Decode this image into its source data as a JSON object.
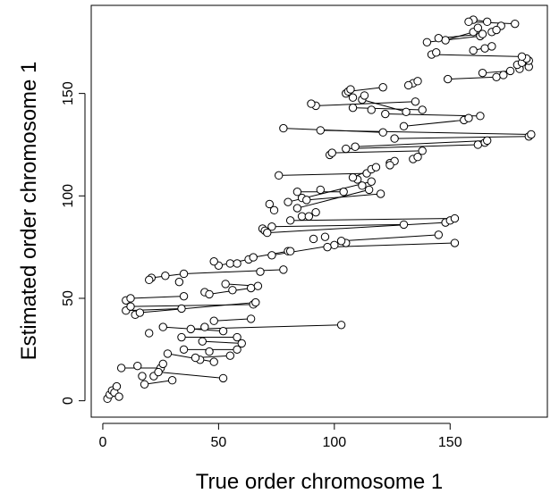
{
  "chart_data": {
    "type": "scatter",
    "xlabel": "True order chromosome 1",
    "ylabel": "Estimated order chromosome 1",
    "xlim": [
      -5,
      192
    ],
    "ylim": [
      -8,
      193
    ],
    "x_ticks": [
      0,
      50,
      100,
      150
    ],
    "y_ticks": [
      0,
      50,
      100,
      150
    ],
    "box": true,
    "grid": false,
    "marker": "open-circle",
    "colors": {
      "stroke": "#000000",
      "fill": "#ffffff"
    },
    "points": [
      {
        "x": 2,
        "y": 1
      },
      {
        "x": 3,
        "y": 3
      },
      {
        "x": 4,
        "y": 5
      },
      {
        "x": 5,
        "y": 4
      },
      {
        "x": 6,
        "y": 7
      },
      {
        "x": 7,
        "y": 2
      },
      {
        "x": 18,
        "y": 8
      },
      {
        "x": 22,
        "y": 12
      },
      {
        "x": 30,
        "y": 10
      },
      {
        "x": 17,
        "y": 12
      },
      {
        "x": 25,
        "y": 16
      },
      {
        "x": 8,
        "y": 16
      },
      {
        "x": 15,
        "y": 17
      },
      {
        "x": 24,
        "y": 14
      },
      {
        "x": 26,
        "y": 18
      },
      {
        "x": 52,
        "y": 11
      },
      {
        "x": 48,
        "y": 19
      },
      {
        "x": 42,
        "y": 20
      },
      {
        "x": 28,
        "y": 23
      },
      {
        "x": 35,
        "y": 25
      },
      {
        "x": 40,
        "y": 21
      },
      {
        "x": 46,
        "y": 24
      },
      {
        "x": 55,
        "y": 22
      },
      {
        "x": 58,
        "y": 25
      },
      {
        "x": 60,
        "y": 28
      },
      {
        "x": 43,
        "y": 29
      },
      {
        "x": 34,
        "y": 31
      },
      {
        "x": 58,
        "y": 31
      },
      {
        "x": 38,
        "y": 35
      },
      {
        "x": 44,
        "y": 36
      },
      {
        "x": 52,
        "y": 34
      },
      {
        "x": 26,
        "y": 36
      },
      {
        "x": 20,
        "y": 33
      },
      {
        "x": 103,
        "y": 37
      },
      {
        "x": 48,
        "y": 39
      },
      {
        "x": 64,
        "y": 40
      },
      {
        "x": 10,
        "y": 44
      },
      {
        "x": 14,
        "y": 42
      },
      {
        "x": 16,
        "y": 43
      },
      {
        "x": 12,
        "y": 46
      },
      {
        "x": 34,
        "y": 45
      },
      {
        "x": 10,
        "y": 49
      },
      {
        "x": 12,
        "y": 50
      },
      {
        "x": 35,
        "y": 51
      },
      {
        "x": 44,
        "y": 53
      },
      {
        "x": 46,
        "y": 52
      },
      {
        "x": 56,
        "y": 54
      },
      {
        "x": 65,
        "y": 47
      },
      {
        "x": 66,
        "y": 48
      },
      {
        "x": 64,
        "y": 55
      },
      {
        "x": 67,
        "y": 56
      },
      {
        "x": 53,
        "y": 57
      },
      {
        "x": 33,
        "y": 58
      },
      {
        "x": 21,
        "y": 60
      },
      {
        "x": 20,
        "y": 59
      },
      {
        "x": 27,
        "y": 61
      },
      {
        "x": 35,
        "y": 62
      },
      {
        "x": 68,
        "y": 63
      },
      {
        "x": 78,
        "y": 64
      },
      {
        "x": 50,
        "y": 66
      },
      {
        "x": 55,
        "y": 67
      },
      {
        "x": 58,
        "y": 67
      },
      {
        "x": 63,
        "y": 69
      },
      {
        "x": 65,
        "y": 70
      },
      {
        "x": 73,
        "y": 71
      },
      {
        "x": 80,
        "y": 73
      },
      {
        "x": 48,
        "y": 68
      },
      {
        "x": 81,
        "y": 73
      },
      {
        "x": 100,
        "y": 76
      },
      {
        "x": 97,
        "y": 75
      },
      {
        "x": 91,
        "y": 79
      },
      {
        "x": 96,
        "y": 80
      },
      {
        "x": 105,
        "y": 77
      },
      {
        "x": 103,
        "y": 78
      },
      {
        "x": 145,
        "y": 81
      },
      {
        "x": 152,
        "y": 77
      },
      {
        "x": 130,
        "y": 86
      },
      {
        "x": 148,
        "y": 87
      },
      {
        "x": 150,
        "y": 88
      },
      {
        "x": 152,
        "y": 89
      },
      {
        "x": 69,
        "y": 84
      },
      {
        "x": 70,
        "y": 83
      },
      {
        "x": 71,
        "y": 82
      },
      {
        "x": 73,
        "y": 85
      },
      {
        "x": 81,
        "y": 88
      },
      {
        "x": 86,
        "y": 90
      },
      {
        "x": 89,
        "y": 90
      },
      {
        "x": 92,
        "y": 92
      },
      {
        "x": 84,
        "y": 94
      },
      {
        "x": 74,
        "y": 93
      },
      {
        "x": 72,
        "y": 96
      },
      {
        "x": 80,
        "y": 97
      },
      {
        "x": 86,
        "y": 99
      },
      {
        "x": 88,
        "y": 98
      },
      {
        "x": 84,
        "y": 102
      },
      {
        "x": 94,
        "y": 103
      },
      {
        "x": 104,
        "y": 102
      },
      {
        "x": 115,
        "y": 103
      },
      {
        "x": 116,
        "y": 107
      },
      {
        "x": 120,
        "y": 101
      },
      {
        "x": 112,
        "y": 105
      },
      {
        "x": 110,
        "y": 108
      },
      {
        "x": 108,
        "y": 109
      },
      {
        "x": 114,
        "y": 111
      },
      {
        "x": 116,
        "y": 113
      },
      {
        "x": 76,
        "y": 110
      },
      {
        "x": 118,
        "y": 114
      },
      {
        "x": 124,
        "y": 116
      },
      {
        "x": 126,
        "y": 117
      },
      {
        "x": 134,
        "y": 118
      },
      {
        "x": 136,
        "y": 119
      },
      {
        "x": 138,
        "y": 122
      },
      {
        "x": 124,
        "y": 115
      },
      {
        "x": 98,
        "y": 120
      },
      {
        "x": 99,
        "y": 121
      },
      {
        "x": 105,
        "y": 123
      },
      {
        "x": 109,
        "y": 124
      },
      {
        "x": 162,
        "y": 125
      },
      {
        "x": 165,
        "y": 126
      },
      {
        "x": 166,
        "y": 127
      },
      {
        "x": 126,
        "y": 128
      },
      {
        "x": 184,
        "y": 129
      },
      {
        "x": 185,
        "y": 130
      },
      {
        "x": 121,
        "y": 131
      },
      {
        "x": 94,
        "y": 132
      },
      {
        "x": 78,
        "y": 133
      },
      {
        "x": 130,
        "y": 134
      },
      {
        "x": 156,
        "y": 137
      },
      {
        "x": 158,
        "y": 138
      },
      {
        "x": 163,
        "y": 139
      },
      {
        "x": 122,
        "y": 140
      },
      {
        "x": 131,
        "y": 141
      },
      {
        "x": 138,
        "y": 142
      },
      {
        "x": 116,
        "y": 142
      },
      {
        "x": 108,
        "y": 143
      },
      {
        "x": 92,
        "y": 144
      },
      {
        "x": 90,
        "y": 145
      },
      {
        "x": 135,
        "y": 146
      },
      {
        "x": 112,
        "y": 147
      },
      {
        "x": 108,
        "y": 148
      },
      {
        "x": 113,
        "y": 149
      },
      {
        "x": 105,
        "y": 150
      },
      {
        "x": 106,
        "y": 151
      },
      {
        "x": 107,
        "y": 152
      },
      {
        "x": 121,
        "y": 153
      },
      {
        "x": 134,
        "y": 155
      },
      {
        "x": 136,
        "y": 156
      },
      {
        "x": 132,
        "y": 154
      },
      {
        "x": 149,
        "y": 157
      },
      {
        "x": 170,
        "y": 158
      },
      {
        "x": 173,
        "y": 159
      },
      {
        "x": 164,
        "y": 160
      },
      {
        "x": 176,
        "y": 161
      },
      {
        "x": 180,
        "y": 162
      },
      {
        "x": 184,
        "y": 163
      },
      {
        "x": 179,
        "y": 164
      },
      {
        "x": 181,
        "y": 165
      },
      {
        "x": 184,
        "y": 166
      },
      {
        "x": 183,
        "y": 167
      },
      {
        "x": 181,
        "y": 168
      },
      {
        "x": 142,
        "y": 169
      },
      {
        "x": 144,
        "y": 170
      },
      {
        "x": 160,
        "y": 171
      },
      {
        "x": 165,
        "y": 172
      },
      {
        "x": 168,
        "y": 173
      },
      {
        "x": 140,
        "y": 175
      },
      {
        "x": 148,
        "y": 176
      },
      {
        "x": 145,
        "y": 177
      },
      {
        "x": 163,
        "y": 178
      },
      {
        "x": 164,
        "y": 179
      },
      {
        "x": 160,
        "y": 180
      },
      {
        "x": 162,
        "y": 182
      },
      {
        "x": 178,
        "y": 184
      },
      {
        "x": 166,
        "y": 185
      },
      {
        "x": 160,
        "y": 186
      },
      {
        "x": 158,
        "y": 185
      },
      {
        "x": 172,
        "y": 183
      },
      {
        "x": 168,
        "y": 180
      },
      {
        "x": 170,
        "y": 181
      }
    ],
    "segments": [
      {
        "x1": 3,
        "y1": 3,
        "x2": 7,
        "y2": 2
      },
      {
        "x1": 18,
        "y1": 8,
        "x2": 30,
        "y2": 10
      },
      {
        "x1": 8,
        "y1": 16,
        "x2": 25,
        "y2": 16
      },
      {
        "x1": 24,
        "y1": 14,
        "x2": 52,
        "y2": 11
      },
      {
        "x1": 28,
        "y1": 23,
        "x2": 48,
        "y2": 19
      },
      {
        "x1": 35,
        "y1": 25,
        "x2": 58,
        "y2": 25
      },
      {
        "x1": 40,
        "y1": 21,
        "x2": 55,
        "y2": 22
      },
      {
        "x1": 43,
        "y1": 29,
        "x2": 60,
        "y2": 28
      },
      {
        "x1": 34,
        "y1": 31,
        "x2": 58,
        "y2": 31
      },
      {
        "x1": 38,
        "y1": 35,
        "x2": 103,
        "y2": 37
      },
      {
        "x1": 26,
        "y1": 36,
        "x2": 52,
        "y2": 34
      },
      {
        "x1": 48,
        "y1": 39,
        "x2": 64,
        "y2": 40
      },
      {
        "x1": 10,
        "y1": 44,
        "x2": 34,
        "y2": 45
      },
      {
        "x1": 12,
        "y1": 46,
        "x2": 65,
        "y2": 47
      },
      {
        "x1": 12,
        "y1": 50,
        "x2": 35,
        "y2": 51
      },
      {
        "x1": 16,
        "y1": 43,
        "x2": 66,
        "y2": 48
      },
      {
        "x1": 46,
        "y1": 52,
        "x2": 64,
        "y2": 55
      },
      {
        "x1": 53,
        "y1": 57,
        "x2": 67,
        "y2": 56
      },
      {
        "x1": 21,
        "y1": 60,
        "x2": 35,
        "y2": 62
      },
      {
        "x1": 35,
        "y1": 62,
        "x2": 78,
        "y2": 64
      },
      {
        "x1": 50,
        "y1": 66,
        "x2": 63,
        "y2": 69
      },
      {
        "x1": 65,
        "y1": 70,
        "x2": 80,
        "y2": 73
      },
      {
        "x1": 73,
        "y1": 71,
        "x2": 100,
        "y2": 76
      },
      {
        "x1": 97,
        "y1": 75,
        "x2": 152,
        "y2": 77
      },
      {
        "x1": 103,
        "y1": 78,
        "x2": 145,
        "y2": 81
      },
      {
        "x1": 73,
        "y1": 85,
        "x2": 130,
        "y2": 86
      },
      {
        "x1": 71,
        "y1": 82,
        "x2": 148,
        "y2": 87
      },
      {
        "x1": 81,
        "y1": 88,
        "x2": 152,
        "y2": 89
      },
      {
        "x1": 86,
        "y1": 90,
        "x2": 92,
        "y2": 92
      },
      {
        "x1": 84,
        "y1": 94,
        "x2": 115,
        "y2": 103
      },
      {
        "x1": 80,
        "y1": 97,
        "x2": 116,
        "y2": 107
      },
      {
        "x1": 88,
        "y1": 98,
        "x2": 120,
        "y2": 101
      },
      {
        "x1": 84,
        "y1": 102,
        "x2": 104,
        "y2": 102
      },
      {
        "x1": 76,
        "y1": 110,
        "x2": 114,
        "y2": 111
      },
      {
        "x1": 108,
        "y1": 109,
        "x2": 118,
        "y2": 114
      },
      {
        "x1": 99,
        "y1": 121,
        "x2": 138,
        "y2": 122
      },
      {
        "x1": 105,
        "y1": 123,
        "x2": 162,
        "y2": 125
      },
      {
        "x1": 109,
        "y1": 124,
        "x2": 166,
        "y2": 127
      },
      {
        "x1": 126,
        "y1": 128,
        "x2": 184,
        "y2": 129
      },
      {
        "x1": 94,
        "y1": 132,
        "x2": 185,
        "y2": 130
      },
      {
        "x1": 78,
        "y1": 133,
        "x2": 121,
        "y2": 131
      },
      {
        "x1": 130,
        "y1": 134,
        "x2": 156,
        "y2": 137
      },
      {
        "x1": 122,
        "y1": 140,
        "x2": 163,
        "y2": 139
      },
      {
        "x1": 108,
        "y1": 143,
        "x2": 138,
        "y2": 142
      },
      {
        "x1": 92,
        "y1": 144,
        "x2": 135,
        "y2": 146
      },
      {
        "x1": 112,
        "y1": 147,
        "x2": 131,
        "y2": 141
      },
      {
        "x1": 106,
        "y1": 151,
        "x2": 121,
        "y2": 153
      },
      {
        "x1": 132,
        "y1": 154,
        "x2": 136,
        "y2": 156
      },
      {
        "x1": 149,
        "y1": 157,
        "x2": 170,
        "y2": 158
      },
      {
        "x1": 164,
        "y1": 160,
        "x2": 176,
        "y2": 161
      },
      {
        "x1": 142,
        "y1": 169,
        "x2": 181,
        "y2": 168
      },
      {
        "x1": 140,
        "y1": 175,
        "x2": 163,
        "y2": 178
      },
      {
        "x1": 148,
        "y1": 176,
        "x2": 160,
        "y2": 180
      },
      {
        "x1": 145,
        "y1": 177,
        "x2": 164,
        "y2": 179
      },
      {
        "x1": 158,
        "y1": 185,
        "x2": 178,
        "y2": 184
      },
      {
        "x1": 160,
        "y1": 186,
        "x2": 166,
        "y2": 185
      },
      {
        "x1": 160,
        "y1": 171,
        "x2": 168,
        "y2": 173
      }
    ]
  }
}
